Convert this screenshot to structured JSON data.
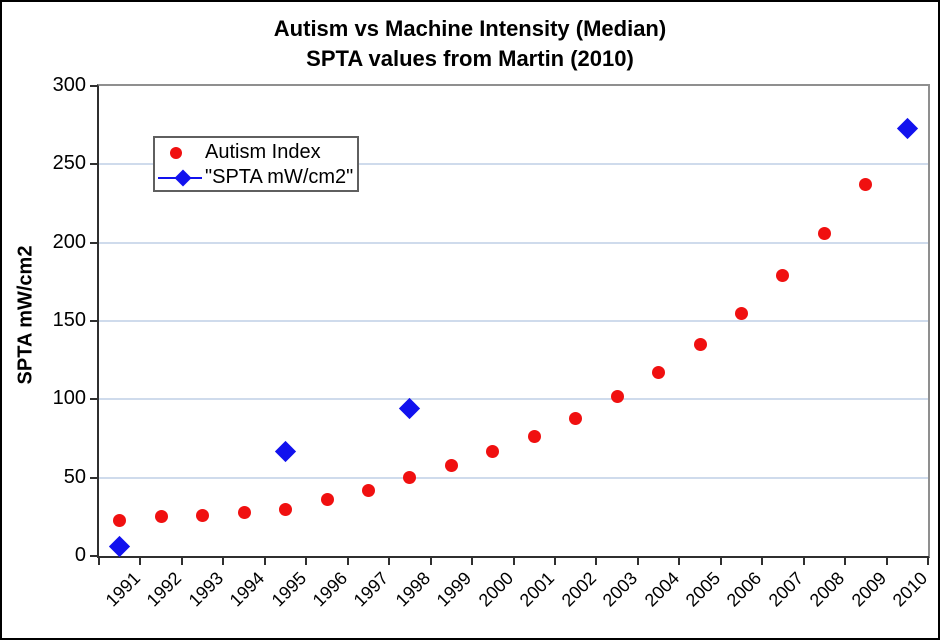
{
  "chart_data": {
    "type": "scatter",
    "title": "Autism vs Machine Intensity (Median)",
    "subtitle": "SPTA values from Martin (2010)",
    "ylabel": "SPTA mW/cm2",
    "ylim": [
      0,
      300
    ],
    "ytick_interval": 50,
    "grid": "horizontal",
    "legend_position": "inside-top-left",
    "x_categories": [
      1991,
      1992,
      1993,
      1994,
      1995,
      1996,
      1997,
      1998,
      1999,
      2000,
      2001,
      2002,
      2003,
      2004,
      2005,
      2006,
      2007,
      2008,
      2009,
      2010
    ],
    "series": [
      {
        "name": "Autism Index",
        "marker": "circle",
        "color": "#f01010",
        "data": [
          [
            1991,
            23
          ],
          [
            1992,
            25
          ],
          [
            1993,
            26
          ],
          [
            1994,
            28
          ],
          [
            1995,
            30
          ],
          [
            1996,
            36
          ],
          [
            1997,
            42
          ],
          [
            1998,
            50
          ],
          [
            1999,
            58
          ],
          [
            2000,
            67
          ],
          [
            2001,
            76
          ],
          [
            2002,
            88
          ],
          [
            2003,
            102
          ],
          [
            2004,
            117
          ],
          [
            2005,
            135
          ],
          [
            2006,
            155
          ],
          [
            2007,
            179
          ],
          [
            2008,
            206
          ],
          [
            2009,
            237
          ]
        ]
      },
      {
        "name": "\"SPTA mW/cm2\"",
        "marker": "diamond",
        "color": "#1212ee",
        "data": [
          [
            1991,
            6
          ],
          [
            1995,
            67
          ],
          [
            1998,
            94
          ],
          [
            2010,
            273
          ]
        ]
      }
    ],
    "colors": {
      "grid": "#cfdbec",
      "axis": "#2f2f2f",
      "plot_border": "#8f8f8f",
      "title_text": "#000000"
    }
  }
}
